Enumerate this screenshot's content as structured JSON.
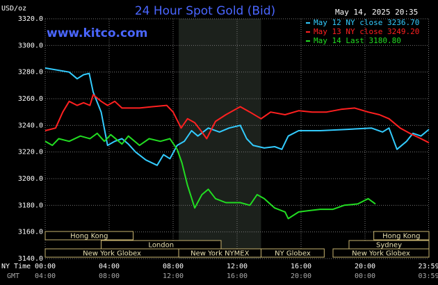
{
  "chart_data": {
    "type": "line",
    "title": "24 Hour Spot Gold (Bid)",
    "timestamp": "May 14, 2025 20:35",
    "site": "www.kitco.com",
    "y_label": "USD/oz",
    "x_label": "NY Time",
    "x2_label": "GMT",
    "ylim": [
      3140,
      3320
    ],
    "yticks": [
      {
        "value": 3140,
        "label": "3140.0"
      },
      {
        "value": 3160,
        "label": "3160.0"
      },
      {
        "value": 3180,
        "label": "3180.0"
      },
      {
        "value": 3200,
        "label": "3200.0"
      },
      {
        "value": 3220,
        "label": "3220.0"
      },
      {
        "value": 3240,
        "label": "3240.0"
      },
      {
        "value": 3260,
        "label": "3260.0"
      },
      {
        "value": 3280,
        "label": "3280.0"
      },
      {
        "value": 3300,
        "label": "3300.0"
      },
      {
        "value": 3320,
        "label": "3320.0"
      }
    ],
    "xlim": [
      0,
      24
    ],
    "xticks": [
      {
        "value": 0,
        "label": "00:00"
      },
      {
        "value": 4,
        "label": "04:00"
      },
      {
        "value": 8,
        "label": "08:00"
      },
      {
        "value": 12,
        "label": "12:00"
      },
      {
        "value": 16,
        "label": "16:00"
      },
      {
        "value": 20,
        "label": "20:00"
      },
      {
        "value": 23.98,
        "label": "23:59"
      }
    ],
    "x2tick_labels": [
      "04:00",
      "08:00",
      "12:00",
      "16:00",
      "20:00",
      "00:00",
      "03:59"
    ],
    "grid": true,
    "legend": "upper right",
    "sessions": [
      {
        "name": "Hong Kong",
        "start": 0,
        "end": 5.5
      },
      {
        "name": "Hong Kong",
        "start": 20.55,
        "end": 24
      },
      {
        "name": "London",
        "start": 3.5,
        "end": 11
      },
      {
        "name": "Sydney",
        "start": 19,
        "end": 24
      },
      {
        "name": "New York Globex",
        "start": 0,
        "end": 8.35
      },
      {
        "name": "New York NYMEX",
        "start": 8.35,
        "end": 13.5
      },
      {
        "name": "NY Globex",
        "start": 13.5,
        "end": 17.45
      },
      {
        "name": "New York Globex",
        "start": 18,
        "end": 24
      }
    ],
    "shaded_session": 5,
    "series": [
      {
        "name": "May 12 NY close 3236.70",
        "color": "#33ccff",
        "x": [
          0,
          1.5,
          2,
          2.4,
          2.75,
          3,
          3.5,
          3.9,
          4.35,
          4.8,
          5.2,
          5.65,
          6.3,
          7,
          7.4,
          7.8,
          8.25,
          8.7,
          9.15,
          9.55,
          10.2,
          10.9,
          11.5,
          12.2,
          12.6,
          13,
          13.7,
          14.35,
          14.8,
          15.2,
          15.85,
          17.2,
          18.9,
          20.4,
          21.1,
          21.5,
          22,
          22.6,
          23,
          23.5,
          24
        ],
        "values": [
          3283,
          3280,
          3275,
          3278,
          3279,
          3265,
          3250,
          3225,
          3228,
          3230,
          3226,
          3220,
          3214,
          3210,
          3218,
          3215,
          3225,
          3228,
          3236,
          3232,
          3238,
          3235,
          3238,
          3240,
          3230,
          3225,
          3223,
          3224,
          3222,
          3232,
          3236,
          3236,
          3237,
          3238,
          3235,
          3238,
          3222,
          3228,
          3234,
          3232,
          3237
        ]
      },
      {
        "name": "May 13 NY close 3249.20",
        "color": "#ff2020",
        "x": [
          0,
          0.65,
          1.1,
          1.5,
          2,
          2.4,
          2.8,
          3,
          3.5,
          3.9,
          4.35,
          4.8,
          5.9,
          6.7,
          7.6,
          8,
          8.5,
          8.9,
          9.35,
          9.8,
          10.1,
          10.65,
          11.3,
          12.2,
          12.8,
          13.5,
          14.1,
          15,
          15.85,
          16.7,
          17.6,
          18.5,
          19.35,
          20.2,
          20.9,
          21.5,
          22.2,
          22.8,
          23.5,
          24
        ],
        "values": [
          3236,
          3238,
          3250,
          3258,
          3255,
          3257,
          3255,
          3263,
          3258,
          3255,
          3258,
          3253,
          3253,
          3254,
          3255,
          3250,
          3238,
          3245,
          3242,
          3235,
          3230,
          3243,
          3248,
          3254,
          3250,
          3245,
          3250,
          3248,
          3251,
          3250,
          3250,
          3252,
          3253,
          3250,
          3248,
          3245,
          3238,
          3234,
          3230,
          3227
        ]
      },
      {
        "name": "May 14 Last 3180.80",
        "color": "#22dd22",
        "x": [
          0,
          0.45,
          0.85,
          1.5,
          2.2,
          2.8,
          3.25,
          3.7,
          4.1,
          4.8,
          5.2,
          5.9,
          6.5,
          7.2,
          7.8,
          8.25,
          8.55,
          8.9,
          9.35,
          9.8,
          10.2,
          10.65,
          11.3,
          12.2,
          12.8,
          13.25,
          13.7,
          14.35,
          15,
          15.2,
          15.85,
          16.5,
          17.2,
          18,
          18.7,
          19.55,
          20.2,
          20.65
        ],
        "values": [
          3228,
          3225,
          3230,
          3228,
          3232,
          3230,
          3234,
          3228,
          3233,
          3226,
          3232,
          3225,
          3230,
          3228,
          3230,
          3222,
          3212,
          3195,
          3178,
          3188,
          3192,
          3185,
          3182,
          3182,
          3180,
          3188,
          3185,
          3178,
          3175,
          3170,
          3175,
          3176,
          3177,
          3177,
          3180,
          3181,
          3185,
          3181
        ]
      }
    ]
  }
}
